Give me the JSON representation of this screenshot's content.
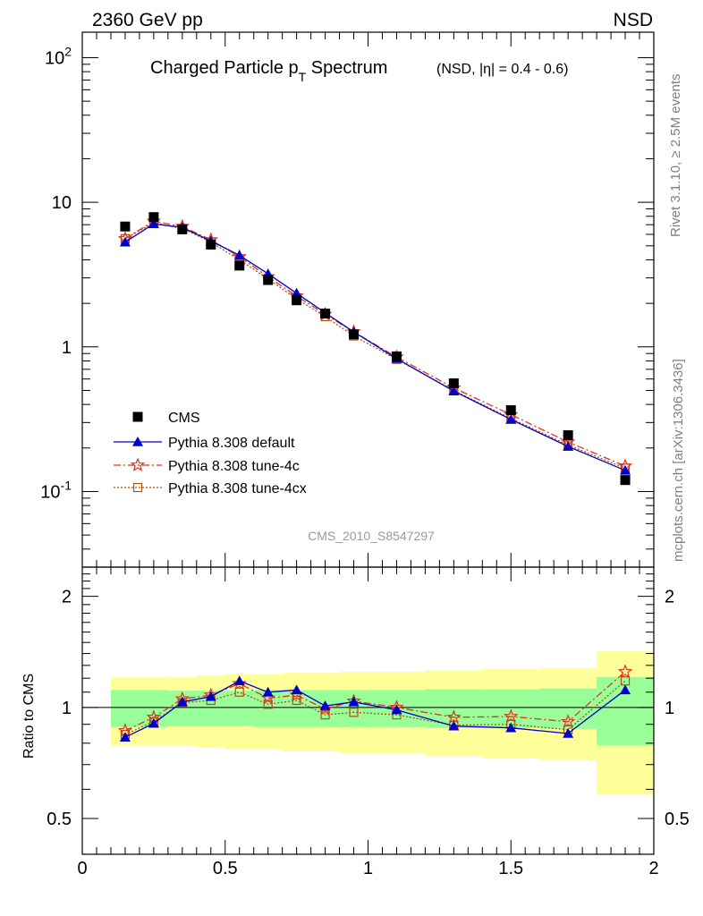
{
  "header": {
    "energy_label": "2360 GeV pp",
    "process_label": "NSD",
    "title_main": "Charged Particle p",
    "title_sub": "T",
    "title_tail": " Spectrum",
    "title_range": "(NSD, |η| = 0.4 - 0.6)",
    "analysis_id": "CMS_2010_S8547297",
    "side_rivet": "Rivet 3.1.10, ≥ 2.5M events",
    "side_mcplots": "mcplots.cern.ch [arXiv:1306.3436]"
  },
  "colors": {
    "data": "#000000",
    "default": "#0000cc",
    "tune4c": "#dd3322",
    "tune4cx": "#aa5511",
    "band_inner": "#99ff99",
    "band_outer": "#ffff99"
  },
  "chart_data": [
    {
      "type": "scatter",
      "title": "Charged Particle pT Spectrum (NSD, |η| = 0.4 - 0.6)",
      "yscale": "log",
      "xlim": [
        0,
        2
      ],
      "ylim": [
        0.03,
        150
      ],
      "y_ticks": [
        "10^2",
        "10",
        "1",
        "10^-1"
      ],
      "legend_position": "lower-left",
      "x": [
        0.15,
        0.25,
        0.35,
        0.45,
        0.55,
        0.65,
        0.75,
        0.85,
        0.95,
        1.1,
        1.3,
        1.5,
        1.7,
        1.9
      ],
      "series": [
        {
          "name": "CMS",
          "style": "data",
          "values": [
            6.8,
            7.9,
            6.5,
            5.1,
            3.65,
            2.9,
            2.1,
            1.7,
            1.22,
            0.86,
            0.56,
            0.365,
            0.245,
            0.12
          ]
        },
        {
          "name": "Pythia 8.308 default",
          "style": "line",
          "values": [
            5.3,
            7.1,
            6.7,
            5.4,
            4.3,
            3.2,
            2.35,
            1.72,
            1.27,
            0.83,
            0.495,
            0.315,
            0.205,
            0.14
          ]
        },
        {
          "name": "Pythia 8.308 tune-4c",
          "style": "dashdot",
          "values": [
            5.6,
            7.4,
            6.8,
            5.5,
            4.2,
            3.05,
            2.25,
            1.68,
            1.27,
            0.85,
            0.52,
            0.34,
            0.22,
            0.15
          ]
        },
        {
          "name": "Pythia 8.308 tune-4cx",
          "style": "dotted",
          "values": [
            5.6,
            7.2,
            6.6,
            5.3,
            4.0,
            2.95,
            2.15,
            1.62,
            1.19,
            0.82,
            0.5,
            0.32,
            0.21,
            0.145
          ]
        }
      ]
    },
    {
      "type": "line",
      "ylabel": "Ratio to CMS",
      "yscale": "log",
      "xlim": [
        0,
        2
      ],
      "ylim": [
        0.4,
        2.4
      ],
      "y_ticks": [
        "2",
        "1",
        "0.5"
      ],
      "x_ticks": [
        "0",
        "0.5",
        "1",
        "1.5",
        "2"
      ],
      "x": [
        0.15,
        0.25,
        0.35,
        0.45,
        0.55,
        0.65,
        0.75,
        0.85,
        0.95,
        1.1,
        1.3,
        1.5,
        1.7,
        1.9
      ],
      "bin_edges": [
        0.1,
        0.2,
        0.3,
        0.4,
        0.5,
        0.6,
        0.7,
        0.8,
        0.9,
        1.0,
        1.2,
        1.4,
        1.6,
        1.8,
        2.0
      ],
      "band_inner": [
        0.115,
        0.115,
        0.11,
        0.11,
        0.11,
        0.115,
        0.115,
        0.115,
        0.115,
        0.115,
        0.12,
        0.12,
        0.125,
        0.21
      ],
      "band_outer": [
        0.21,
        0.21,
        0.21,
        0.22,
        0.23,
        0.23,
        0.24,
        0.24,
        0.25,
        0.25,
        0.26,
        0.27,
        0.28,
        0.42
      ],
      "series": [
        {
          "name": "Pythia 8.308 default",
          "style": "line",
          "values": [
            0.83,
            0.905,
            1.035,
            1.07,
            1.18,
            1.1,
            1.115,
            1.01,
            1.035,
            0.985,
            0.89,
            0.88,
            0.85,
            1.115
          ]
        },
        {
          "name": "Pythia 8.308 tune-4c",
          "style": "dashdot",
          "values": [
            0.865,
            0.94,
            1.055,
            1.08,
            1.16,
            1.06,
            1.08,
            0.99,
            1.04,
            1.0,
            0.94,
            0.945,
            0.915,
            1.25
          ]
        },
        {
          "name": "Pythia 8.308 tune-4cx",
          "style": "dotted",
          "values": [
            0.845,
            0.915,
            1.03,
            1.045,
            1.1,
            1.02,
            1.045,
            0.955,
            0.97,
            0.955,
            0.895,
            0.9,
            0.87,
            1.18
          ]
        }
      ]
    }
  ]
}
